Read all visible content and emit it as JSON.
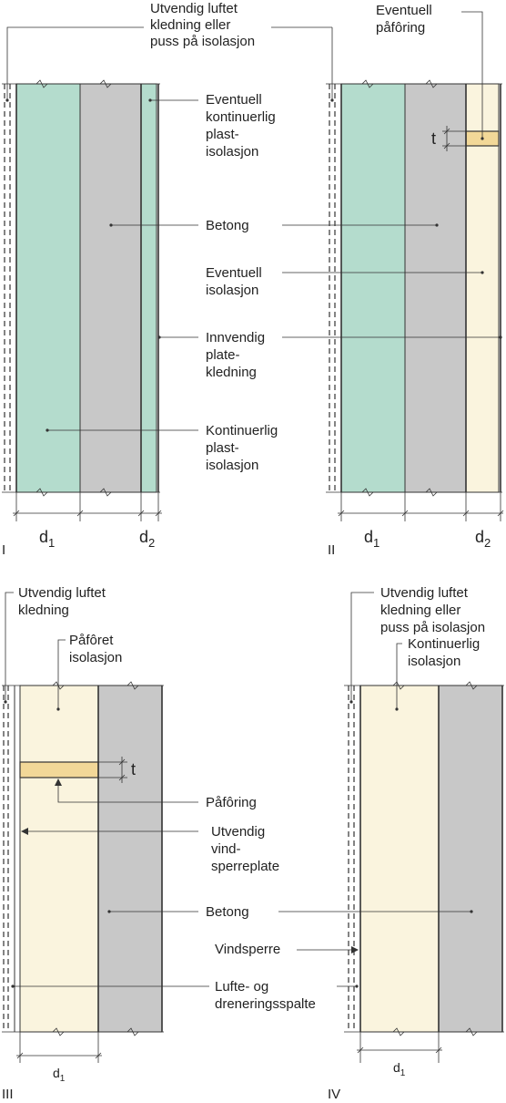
{
  "colors": {
    "plastic_insulation": "#b4dccd",
    "concrete": "#c8c8c8",
    "insulation": "#faf4de",
    "batten": "#f2d898",
    "line": "#333333"
  },
  "panels": {
    "I": {
      "numeral": "I",
      "labels": {
        "cladding": [
          "Utvendig luftet",
          "kledning eller",
          "puss på isolasjon"
        ],
        "optional_plastic": [
          "Eventuell",
          "kontinuerlig",
          "plast-",
          "isolasjon"
        ],
        "concrete": [
          "Betong"
        ],
        "inner_board": [
          "Innvendig",
          "plate-",
          "kledning"
        ],
        "continuous_plastic": [
          "Kontinuerlig",
          "plast-",
          "isolasjon"
        ]
      },
      "dims": {
        "d1": "d",
        "d1_sub": "1",
        "d2": "d",
        "d2_sub": "2"
      }
    },
    "II": {
      "numeral": "II",
      "labels": {
        "optional_batten": [
          "Eventuell",
          "påfôring"
        ],
        "optional_insulation": [
          "Eventuell",
          "isolasjon"
        ]
      },
      "dims": {
        "t": "t",
        "d1": "d",
        "d1_sub": "1",
        "d2": "d",
        "d2_sub": "2"
      }
    },
    "III": {
      "numeral": "III",
      "labels": {
        "cladding": [
          "Utvendig luftet",
          "kledning"
        ],
        "battened_insulation": [
          "Påfôret",
          "isolasjon"
        ],
        "batten": [
          "Påfôring"
        ],
        "wind_board": [
          "Utvendig",
          "vind-",
          "sperreplate"
        ],
        "concrete": [
          "Betong"
        ],
        "wind_barrier": [
          "Vindsperre"
        ],
        "air_gap": [
          "Lufte- og",
          "dreneringsspalte"
        ]
      },
      "dims": {
        "t": "t",
        "d1": "d",
        "d1_sub": "1"
      }
    },
    "IV": {
      "numeral": "IV",
      "labels": {
        "cladding": [
          "Utvendig luftet",
          "kledning eller",
          "puss på isolasjon"
        ],
        "continuous_insulation": [
          "Kontinuerlig",
          "isolasjon"
        ]
      },
      "dims": {
        "d1": "d",
        "d1_sub": "1"
      }
    }
  }
}
